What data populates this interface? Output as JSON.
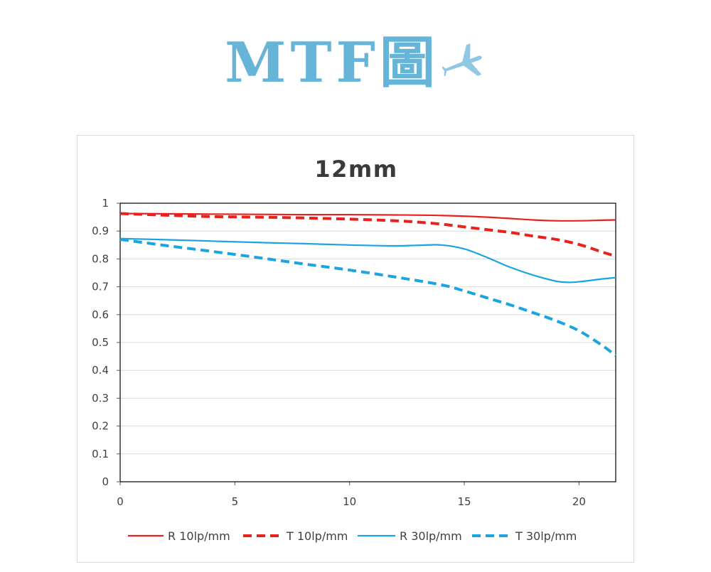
{
  "banner": {
    "title": "MTF圖",
    "plane_icon": "airplane-icon",
    "color": "#66b4d8"
  },
  "chart_data": {
    "type": "line",
    "title": "12mm",
    "xlabel": "",
    "ylabel": "",
    "xlim": [
      0,
      21.6
    ],
    "ylim": [
      0,
      1
    ],
    "x_ticks": [
      "0",
      "5",
      "10",
      "15",
      "20"
    ],
    "y_ticks": [
      "0",
      "0.1",
      "0.2",
      "0.3",
      "0.4",
      "0.5",
      "0.6",
      "0.7",
      "0.8",
      "0.9",
      "1"
    ],
    "grid": "horizontal",
    "legend": "bottom",
    "series": [
      {
        "name": "R 10lp/mm",
        "color": "#e8211d",
        "style": "solid",
        "x": [
          0,
          2,
          4,
          6,
          8,
          10,
          12,
          14,
          16,
          18,
          19,
          20,
          21,
          21.6
        ],
        "y": [
          0.963,
          0.962,
          0.961,
          0.96,
          0.959,
          0.959,
          0.958,
          0.956,
          0.95,
          0.94,
          0.937,
          0.937,
          0.939,
          0.94
        ]
      },
      {
        "name": "T 10lp/mm",
        "color": "#e8211d",
        "style": "dashed",
        "x": [
          0,
          2,
          4,
          6,
          8,
          10,
          12,
          13,
          14,
          15,
          16,
          17,
          18,
          19,
          20,
          21,
          21.6
        ],
        "y": [
          0.963,
          0.957,
          0.952,
          0.95,
          0.947,
          0.943,
          0.937,
          0.932,
          0.925,
          0.915,
          0.905,
          0.895,
          0.882,
          0.87,
          0.852,
          0.825,
          0.81
        ]
      },
      {
        "name": "R 30lp/mm",
        "color": "#1aa5e0",
        "style": "solid",
        "x": [
          0,
          2,
          4,
          6,
          8,
          10,
          12,
          13,
          14,
          15,
          16,
          17,
          18,
          19,
          19.5,
          20,
          21,
          21.6
        ],
        "y": [
          0.873,
          0.869,
          0.864,
          0.859,
          0.855,
          0.85,
          0.847,
          0.849,
          0.85,
          0.836,
          0.805,
          0.77,
          0.742,
          0.72,
          0.716,
          0.718,
          0.728,
          0.733
        ]
      },
      {
        "name": "T 30lp/mm",
        "color": "#1aa5e0",
        "style": "dashed",
        "x": [
          0,
          2,
          4,
          6,
          8,
          10,
          12,
          14,
          15,
          16,
          17,
          18,
          19,
          20,
          21,
          21.6
        ],
        "y": [
          0.87,
          0.848,
          0.827,
          0.805,
          0.782,
          0.76,
          0.735,
          0.707,
          0.685,
          0.66,
          0.635,
          0.607,
          0.578,
          0.542,
          0.49,
          0.453
        ]
      }
    ]
  }
}
